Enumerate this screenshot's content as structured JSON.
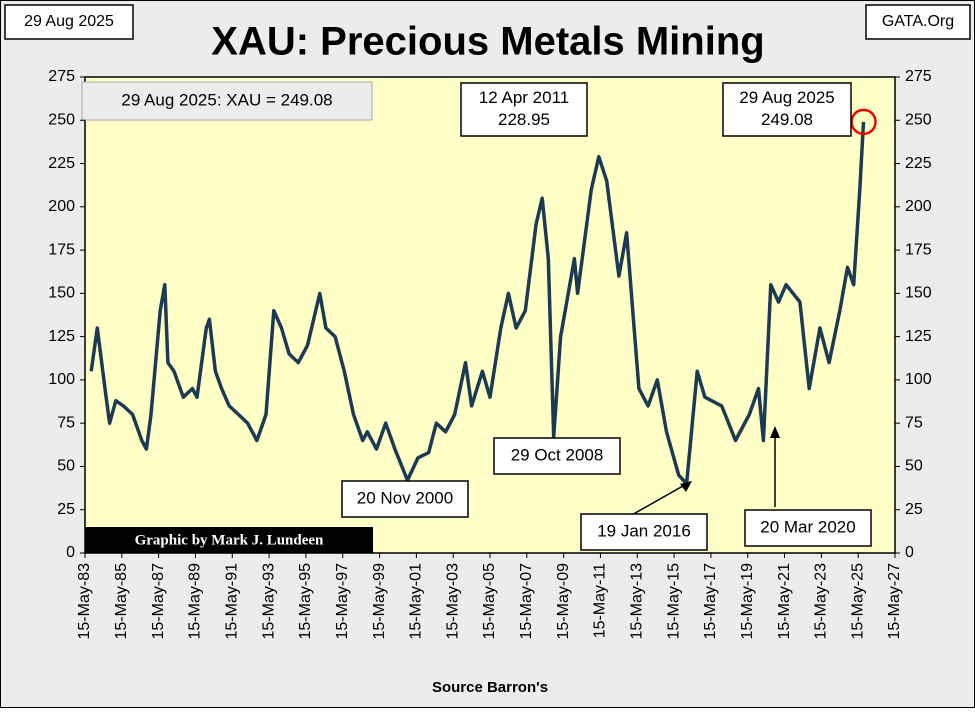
{
  "header": {
    "date": "29 Aug 2025",
    "source_site": "GATA.Org"
  },
  "chart_data": {
    "type": "line",
    "title": "XAU: Precious Metals Mining",
    "info": "29 Aug 2025: XAU = 249.08",
    "credit": "Graphic by Mark J. Lundeen",
    "x_label": "Source Barron's",
    "annotations": [
      {
        "lines": [
          "12 Apr 2011",
          "228.95"
        ]
      },
      {
        "lines": [
          "29 Aug 2025",
          "249.08"
        ]
      },
      {
        "lines": [
          "20 Nov 2000"
        ]
      },
      {
        "lines": [
          "29 Oct 2008"
        ]
      },
      {
        "lines": [
          "19 Jan 2016"
        ]
      },
      {
        "lines": [
          "20 Mar 2020"
        ]
      }
    ],
    "xlim": [
      "1983-05-15",
      "2027-05-15"
    ],
    "xticks": [
      {
        "value": "1983-05-15",
        "label": "15-May-83"
      },
      {
        "value": "1985-05-15",
        "label": "15-May-85"
      },
      {
        "value": "1987-05-15",
        "label": "15-May-87"
      },
      {
        "value": "1989-05-15",
        "label": "15-May-89"
      },
      {
        "value": "1991-05-15",
        "label": "15-May-91"
      },
      {
        "value": "1993-05-15",
        "label": "15-May-93"
      },
      {
        "value": "1995-05-15",
        "label": "15-May-95"
      },
      {
        "value": "1997-05-15",
        "label": "15-May-97"
      },
      {
        "value": "1999-05-15",
        "label": "15-May-99"
      },
      {
        "value": "2001-05-15",
        "label": "15-May-01"
      },
      {
        "value": "2003-05-15",
        "label": "15-May-03"
      },
      {
        "value": "2005-05-15",
        "label": "15-May-05"
      },
      {
        "value": "2007-05-15",
        "label": "15-May-07"
      },
      {
        "value": "2009-05-15",
        "label": "15-May-09"
      },
      {
        "value": "2011-05-15",
        "label": "15-May-11"
      },
      {
        "value": "2013-05-15",
        "label": "15-May-13"
      },
      {
        "value": "2015-05-15",
        "label": "15-May-15"
      },
      {
        "value": "2017-05-15",
        "label": "15-May-17"
      },
      {
        "value": "2019-05-15",
        "label": "15-May-19"
      },
      {
        "value": "2021-05-15",
        "label": "15-May-21"
      },
      {
        "value": "2023-05-15",
        "label": "15-May-23"
      },
      {
        "value": "2025-05-15",
        "label": "15-May-25"
      },
      {
        "value": "2027-05-15",
        "label": "15-May-27"
      }
    ],
    "ylim": [
      0,
      275
    ],
    "yticks": [
      0,
      25,
      50,
      75,
      100,
      125,
      150,
      175,
      200,
      225,
      250,
      275
    ],
    "x": [
      "1983-09-15",
      "1984-01-15",
      "1984-06-15",
      "1984-09-15",
      "1985-01-15",
      "1985-06-15",
      "1985-12-15",
      "1986-06-15",
      "1986-09-15",
      "1986-12-15",
      "1987-03-15",
      "1987-06-15",
      "1987-09-15",
      "1987-11-15",
      "1988-03-15",
      "1988-09-15",
      "1989-03-15",
      "1989-06-15",
      "1989-12-15",
      "1990-02-15",
      "1990-06-15",
      "1990-10-15",
      "1991-03-15",
      "1991-09-15",
      "1992-03-15",
      "1992-09-15",
      "1993-03-15",
      "1993-08-15",
      "1994-01-15",
      "1994-06-15",
      "1994-12-15",
      "1995-06-15",
      "1996-02-15",
      "1996-06-15",
      "1996-12-15",
      "1997-06-15",
      "1997-12-15",
      "1998-06-15",
      "1998-09-15",
      "1999-03-15",
      "1999-09-15",
      "2000-03-15",
      "2000-11-20",
      "2001-06-15",
      "2002-01-15",
      "2002-06-15",
      "2002-12-15",
      "2003-06-15",
      "2004-01-15",
      "2004-05-15",
      "2004-12-15",
      "2005-05-15",
      "2005-12-15",
      "2006-05-15",
      "2006-10-15",
      "2007-04-15",
      "2007-11-15",
      "2008-03-15",
      "2008-07-15",
      "2008-10-29",
      "2009-03-15",
      "2009-12-15",
      "2010-02-15",
      "2010-11-15",
      "2011-04-12",
      "2011-09-15",
      "2012-05-15",
      "2012-10-15",
      "2013-06-15",
      "2013-12-15",
      "2014-06-15",
      "2014-12-15",
      "2015-08-15",
      "2016-01-19",
      "2016-08-15",
      "2017-01-15",
      "2017-12-15",
      "2018-09-15",
      "2019-06-15",
      "2019-12-15",
      "2020-03-20",
      "2020-08-15",
      "2021-01-15",
      "2021-06-15",
      "2022-03-15",
      "2022-09-15",
      "2023-04-15",
      "2023-10-15",
      "2024-05-15",
      "2024-10-15",
      "2025-02-15",
      "2025-06-15",
      "2025-08-29"
    ],
    "series": [
      {
        "name": "XAU",
        "color": "#1c3a52",
        "values": [
          105,
          130,
          95,
          75,
          88,
          85,
          80,
          65,
          60,
          80,
          110,
          140,
          155,
          110,
          105,
          90,
          95,
          90,
          130,
          135,
          105,
          95,
          85,
          80,
          75,
          65,
          80,
          140,
          130,
          115,
          110,
          120,
          150,
          130,
          125,
          105,
          80,
          65,
          70,
          60,
          75,
          60,
          42,
          55,
          58,
          75,
          70,
          80,
          110,
          85,
          105,
          90,
          130,
          150,
          130,
          140,
          190,
          205,
          170,
          67,
          125,
          170,
          150,
          210,
          228.95,
          215,
          160,
          185,
          95,
          85,
          100,
          70,
          45,
          40,
          105,
          90,
          85,
          65,
          80,
          95,
          65,
          155,
          145,
          155,
          145,
          95,
          130,
          110,
          140,
          165,
          155,
          210,
          249.08
        ]
      }
    ],
    "plot_background": "#ffffc8"
  }
}
